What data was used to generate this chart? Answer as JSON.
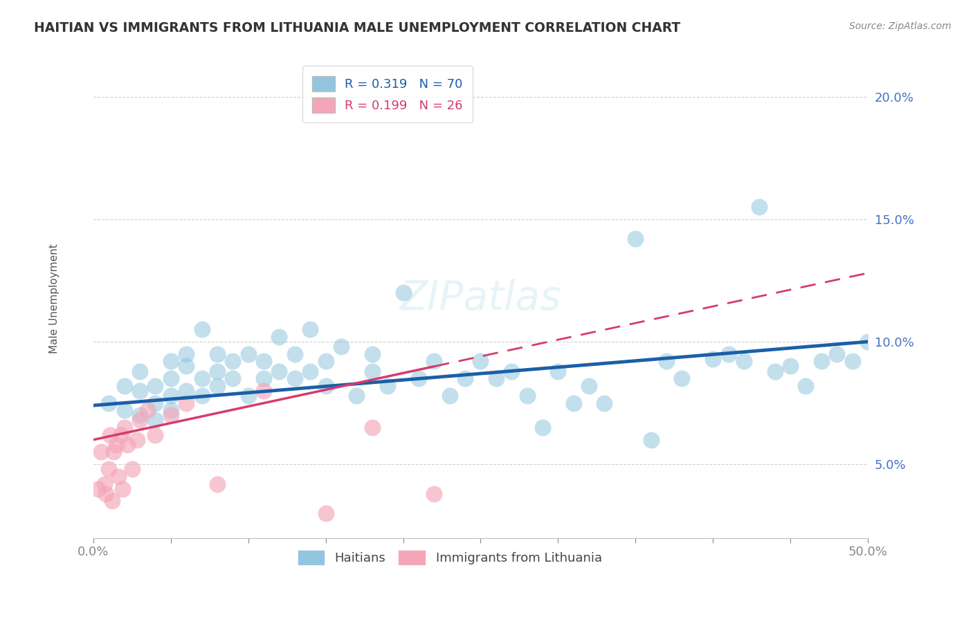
{
  "title": "HAITIAN VS IMMIGRANTS FROM LITHUANIA MALE UNEMPLOYMENT CORRELATION CHART",
  "source": "Source: ZipAtlas.com",
  "ylabel": "Male Unemployment",
  "xlim": [
    0.0,
    0.5
  ],
  "ylim": [
    0.02,
    0.215
  ],
  "yticks": [
    0.05,
    0.1,
    0.15,
    0.2
  ],
  "ytick_labels": [
    "5.0%",
    "10.0%",
    "15.0%",
    "20.0%"
  ],
  "xtick_labels_show": [
    "0.0%",
    "50.0%"
  ],
  "R_haiti": 0.319,
  "N_haiti": 70,
  "R_lith": 0.199,
  "N_lith": 26,
  "haiti_color": "#92c5de",
  "lith_color": "#f4a6b8",
  "haiti_line_color": "#1a5fa8",
  "lith_line_color": "#d63b6e",
  "background_color": "#ffffff",
  "haiti_x": [
    0.01,
    0.02,
    0.02,
    0.03,
    0.03,
    0.03,
    0.04,
    0.04,
    0.04,
    0.05,
    0.05,
    0.05,
    0.05,
    0.06,
    0.06,
    0.06,
    0.07,
    0.07,
    0.07,
    0.08,
    0.08,
    0.08,
    0.09,
    0.09,
    0.1,
    0.1,
    0.11,
    0.11,
    0.12,
    0.12,
    0.13,
    0.13,
    0.14,
    0.14,
    0.15,
    0.15,
    0.16,
    0.17,
    0.18,
    0.18,
    0.19,
    0.2,
    0.21,
    0.22,
    0.23,
    0.24,
    0.25,
    0.26,
    0.27,
    0.28,
    0.29,
    0.3,
    0.31,
    0.32,
    0.33,
    0.35,
    0.36,
    0.37,
    0.38,
    0.4,
    0.41,
    0.42,
    0.43,
    0.44,
    0.45,
    0.46,
    0.47,
    0.48,
    0.49,
    0.5
  ],
  "haiti_y": [
    0.075,
    0.072,
    0.082,
    0.07,
    0.08,
    0.088,
    0.075,
    0.082,
    0.068,
    0.078,
    0.072,
    0.092,
    0.085,
    0.08,
    0.09,
    0.095,
    0.085,
    0.078,
    0.105,
    0.088,
    0.095,
    0.082,
    0.092,
    0.085,
    0.078,
    0.095,
    0.092,
    0.085,
    0.088,
    0.102,
    0.095,
    0.085,
    0.088,
    0.105,
    0.092,
    0.082,
    0.098,
    0.078,
    0.095,
    0.088,
    0.082,
    0.12,
    0.085,
    0.092,
    0.078,
    0.085,
    0.092,
    0.085,
    0.088,
    0.078,
    0.065,
    0.088,
    0.075,
    0.082,
    0.075,
    0.142,
    0.06,
    0.092,
    0.085,
    0.093,
    0.095,
    0.092,
    0.155,
    0.088,
    0.09,
    0.082,
    0.092,
    0.095,
    0.092,
    0.1
  ],
  "lith_x": [
    0.003,
    0.005,
    0.007,
    0.008,
    0.01,
    0.011,
    0.012,
    0.013,
    0.015,
    0.016,
    0.018,
    0.019,
    0.02,
    0.022,
    0.025,
    0.028,
    0.03,
    0.035,
    0.04,
    0.05,
    0.06,
    0.08,
    0.11,
    0.15,
    0.18,
    0.22
  ],
  "lith_y": [
    0.04,
    0.055,
    0.042,
    0.038,
    0.048,
    0.062,
    0.035,
    0.055,
    0.058,
    0.045,
    0.062,
    0.04,
    0.065,
    0.058,
    0.048,
    0.06,
    0.068,
    0.072,
    0.062,
    0.07,
    0.075,
    0.042,
    0.08,
    0.03,
    0.065,
    0.038
  ],
  "haiti_trend_x0": 0.0,
  "haiti_trend_y0": 0.074,
  "haiti_trend_x1": 0.5,
  "haiti_trend_y1": 0.1,
  "lith_trend_x0": 0.0,
  "lith_trend_y0": 0.06,
  "lith_trend_x1": 0.5,
  "lith_trend_y1": 0.128
}
